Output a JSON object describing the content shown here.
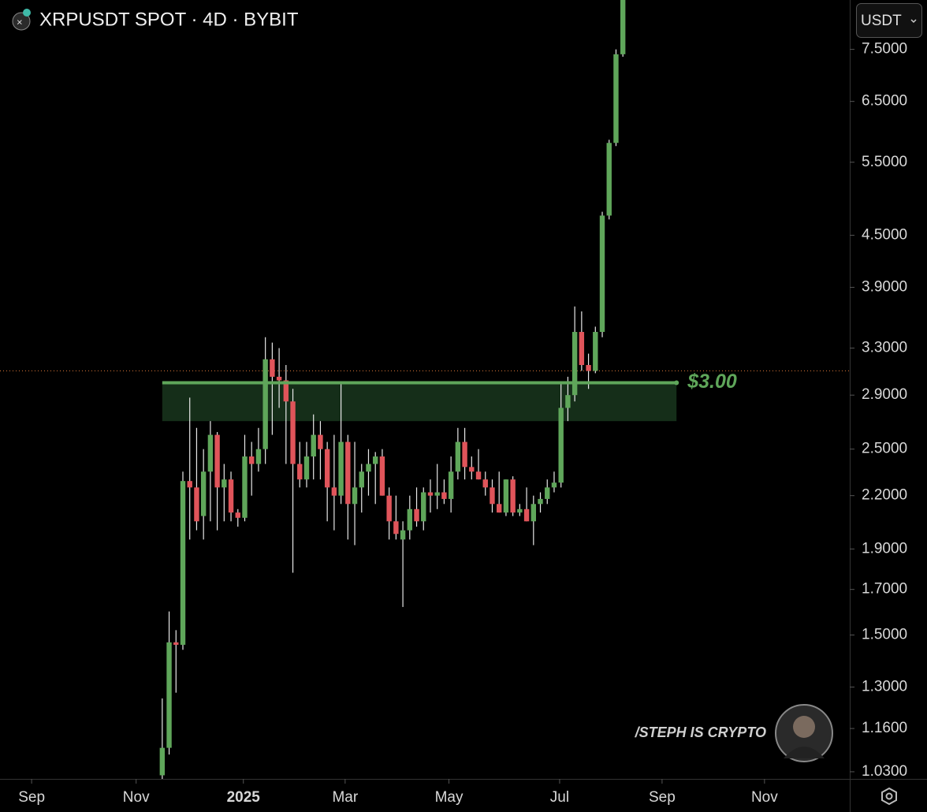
{
  "chart_data": {
    "type": "candlestick",
    "title": "XRPUSDT SPOT · 4D · BYBIT",
    "currency": "USDT",
    "watermark": "/STEPH IS CRYPTO",
    "log_scale": true,
    "up_color": "#5fa65a",
    "down_color": "#e0545a",
    "open": [
      1.02,
      1.1,
      1.47,
      1.46,
      2.29,
      2.25,
      2.08,
      2.35,
      2.6,
      2.25,
      2.3,
      2.1,
      2.07,
      2.45,
      2.4,
      2.5,
      3.2,
      3.05,
      3.02,
      2.85,
      2.4,
      2.3,
      2.45,
      2.6,
      2.5,
      2.25,
      2.2,
      2.55,
      2.15,
      2.25,
      2.35,
      2.4,
      2.45,
      2.2,
      2.05,
      1.95,
      2.0,
      2.12,
      2.05,
      2.22,
      2.2,
      2.22,
      2.18,
      2.35,
      2.55,
      2.38,
      2.35,
      2.3,
      2.25,
      2.15,
      2.1,
      2.3,
      2.1,
      2.12,
      2.05,
      2.15,
      2.18,
      2.25,
      2.28,
      2.8,
      2.9,
      3.45,
      3.15,
      3.1,
      3.45,
      4.75,
      5.8,
      7.4
    ],
    "high": [
      1.26,
      1.6,
      1.52,
      2.35,
      2.88,
      2.65,
      2.5,
      2.7,
      2.62,
      2.4,
      2.35,
      2.12,
      2.6,
      2.55,
      2.65,
      3.4,
      3.35,
      3.3,
      3.15,
      2.95,
      2.55,
      2.55,
      2.75,
      2.7,
      2.55,
      2.6,
      3.0,
      2.6,
      2.55,
      2.4,
      2.5,
      2.48,
      2.5,
      2.25,
      2.2,
      2.05,
      2.2,
      2.25,
      2.25,
      2.3,
      2.4,
      2.3,
      2.45,
      2.65,
      2.65,
      2.45,
      2.5,
      2.35,
      2.3,
      2.35,
      2.3,
      2.32,
      2.15,
      2.25,
      2.2,
      2.22,
      2.3,
      2.35,
      3.0,
      3.05,
      3.7,
      3.65,
      3.25,
      3.5,
      4.8,
      5.85,
      7.5,
      8.59
    ],
    "low": [
      1.0,
      1.08,
      1.28,
      1.44,
      1.95,
      2.0,
      1.95,
      2.05,
      2.0,
      2.05,
      2.05,
      2.02,
      2.05,
      2.2,
      2.35,
      2.4,
      2.6,
      2.8,
      2.4,
      1.78,
      2.25,
      2.25,
      2.3,
      2.3,
      2.05,
      2.0,
      2.15,
      1.95,
      1.92,
      2.1,
      2.2,
      2.15,
      2.2,
      1.95,
      1.95,
      1.62,
      1.95,
      2.02,
      2.0,
      2.1,
      2.12,
      2.15,
      2.1,
      2.3,
      2.3,
      2.3,
      2.3,
      2.2,
      2.1,
      2.1,
      2.08,
      2.08,
      2.08,
      2.05,
      1.92,
      2.1,
      2.15,
      2.22,
      2.25,
      2.7,
      2.85,
      3.1,
      2.95,
      3.08,
      3.4,
      4.7,
      5.75,
      7.35
    ],
    "close": [
      1.1,
      1.47,
      1.46,
      2.29,
      2.25,
      2.05,
      2.35,
      2.6,
      2.25,
      2.3,
      2.1,
      2.07,
      2.45,
      2.4,
      2.5,
      3.2,
      3.05,
      3.02,
      2.85,
      2.4,
      2.3,
      2.45,
      2.6,
      2.5,
      2.25,
      2.2,
      2.55,
      2.15,
      2.25,
      2.35,
      2.4,
      2.45,
      2.2,
      2.05,
      1.98,
      2.0,
      2.12,
      2.05,
      2.22,
      2.2,
      2.22,
      2.18,
      2.35,
      2.55,
      2.38,
      2.35,
      2.3,
      2.25,
      2.15,
      2.1,
      2.3,
      2.1,
      2.12,
      2.05,
      2.15,
      2.18,
      2.25,
      2.28,
      2.8,
      2.9,
      3.45,
      3.15,
      3.1,
      3.45,
      4.75,
      5.8,
      7.4,
      8.59
    ],
    "xlim": [
      -23.6,
      100
    ],
    "xticks": [
      {
        "value": -19.0,
        "label": "Sep"
      },
      {
        "value": -3.8,
        "label": "Nov"
      },
      {
        "value": 11.8,
        "label": "2025"
      },
      {
        "value": 26.6,
        "label": "Mar"
      },
      {
        "value": 41.7,
        "label": "May"
      },
      {
        "value": 57.8,
        "label": "Jul"
      },
      {
        "value": 72.7,
        "label": "Sep"
      },
      {
        "value": 87.6,
        "label": "Nov"
      }
    ],
    "ylim": [
      1.01,
      8.59
    ],
    "yticks": [
      {
        "value": 7.5,
        "label": "7.5000"
      },
      {
        "value": 6.5,
        "label": "6.5000"
      },
      {
        "value": 5.5,
        "label": "5.5000"
      },
      {
        "value": 4.5,
        "label": "4.5000"
      },
      {
        "value": 3.9,
        "label": "3.9000"
      },
      {
        "value": 3.3,
        "label": "3.3000"
      },
      {
        "value": 2.9,
        "label": "2.9000"
      },
      {
        "value": 2.5,
        "label": "2.5000"
      },
      {
        "value": 2.2,
        "label": "2.2000"
      },
      {
        "value": 1.9,
        "label": "1.9000"
      },
      {
        "value": 1.7,
        "label": "1.7000"
      },
      {
        "value": 1.5,
        "label": "1.5000"
      },
      {
        "value": 1.3,
        "label": "1.3000"
      },
      {
        "value": 1.16,
        "label": "1.1600"
      },
      {
        "value": 1.03,
        "label": "1.0300"
      }
    ],
    "price_line": 3.1,
    "level": {
      "value": 3.0,
      "label": "$3.00",
      "zone": [
        2.7,
        3.0
      ],
      "x_range": [
        0,
        74.8
      ],
      "color": "#5fa65a"
    }
  }
}
